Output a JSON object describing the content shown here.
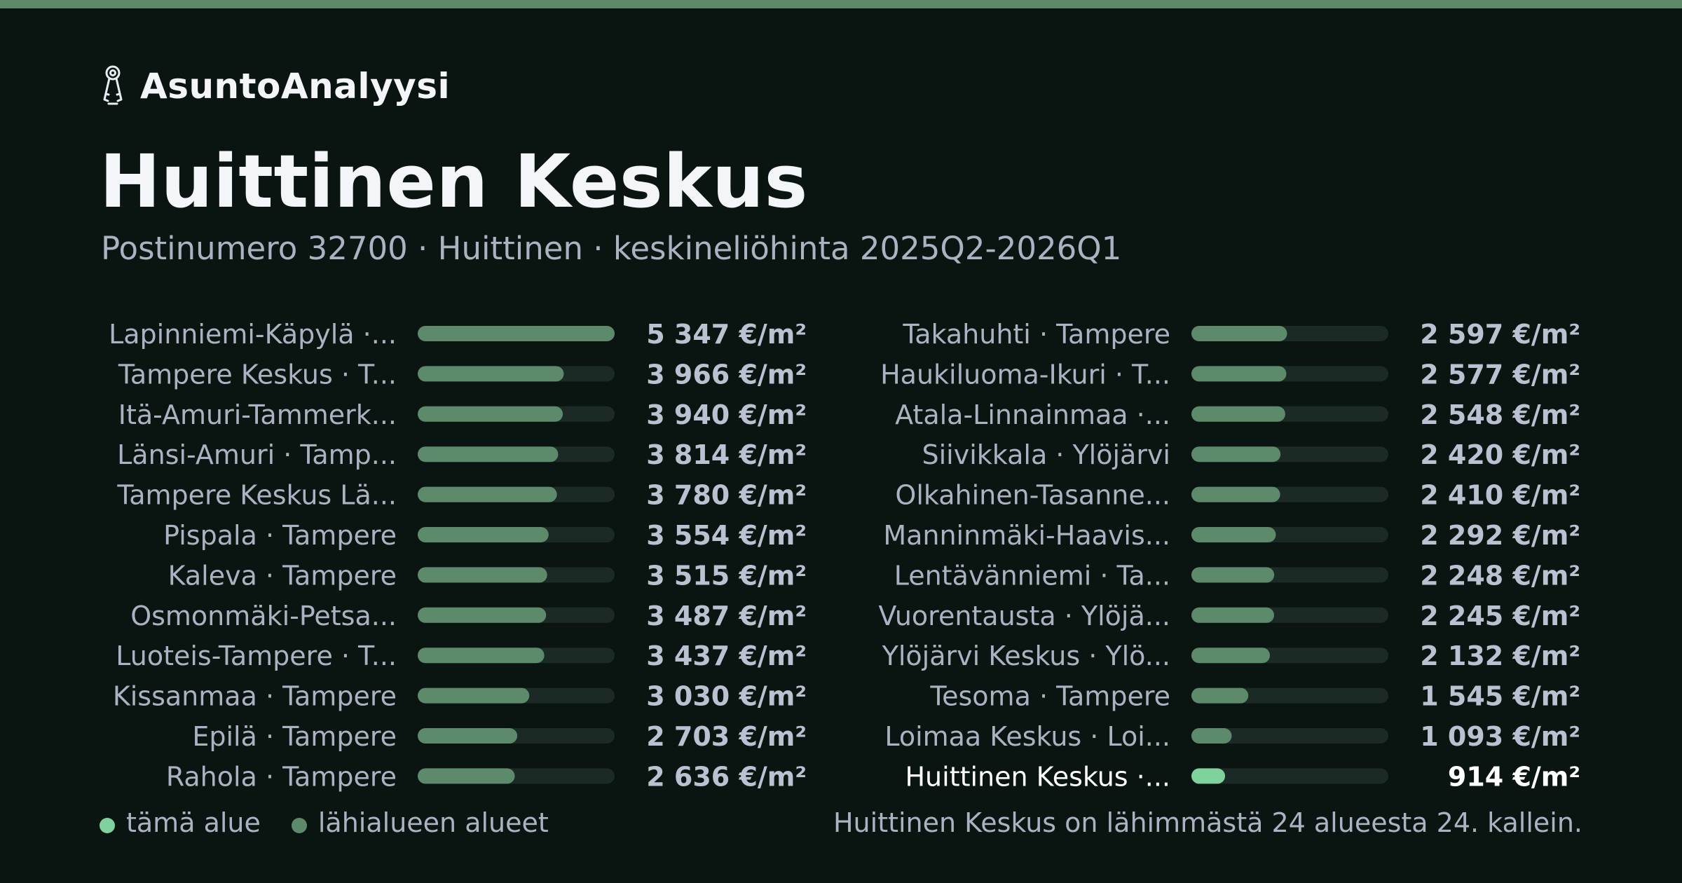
{
  "brand": {
    "name": "AsuntoAnalyysi",
    "icon": "keys-icon"
  },
  "title": "Huittinen Keskus",
  "subtitle": "Postinumero 32700 · Huittinen · keskineliöhinta 2025Q2-2026Q1",
  "colors": {
    "background": "#0a1512",
    "top_strip": "#5b8a66",
    "bar": "#5e8a6c",
    "bar_highlight": "#7fd29b",
    "track": "#1b2a25",
    "label": "#aab3c2",
    "label_highlight": "#ffffff",
    "value": "#b9c2d0",
    "value_highlight": "#ffffff"
  },
  "chart_data": {
    "type": "bar",
    "orientation": "horizontal",
    "unit": "€/m²",
    "xlim": [
      0,
      5347
    ],
    "grid": false,
    "layout": "two-column",
    "categories": [
      "Lapinniemi-Käpylä ·...",
      "Tampere Keskus · T...",
      "Itä-Amuri-Tammerk...",
      "Länsi-Amuri · Tamp...",
      "Tampere Keskus Lä...",
      "Pispala · Tampere",
      "Kaleva · Tampere",
      "Osmonmäki-Petsa...",
      "Luoteis-Tampere · T...",
      "Kissanmaa · Tampere",
      "Epilä · Tampere",
      "Rahola · Tampere",
      "Takahuhti · Tampere",
      "Haukiluoma-Ikuri · T...",
      "Atala-Linnainmaa ·...",
      "Siivikkala · Ylöjärvi",
      "Olkahinen-Tasanne...",
      "Manninmäki-Haavis...",
      "Lentävänniemi · Ta...",
      "Vuorentausta · Ylöjä...",
      "Ylöjärvi Keskus · Ylö...",
      "Tesoma · Tampere",
      "Loimaa Keskus · Loi...",
      "Huittinen Keskus ·..."
    ],
    "values": [
      5347,
      3966,
      3940,
      3814,
      3780,
      3554,
      3515,
      3487,
      3437,
      3030,
      2703,
      2636,
      2597,
      2577,
      2548,
      2420,
      2410,
      2292,
      2248,
      2245,
      2132,
      1545,
      1093,
      914
    ],
    "value_labels": [
      "5 347 €/m²",
      "3 966 €/m²",
      "3 940 €/m²",
      "3 814 €/m²",
      "3 780 €/m²",
      "3 554 €/m²",
      "3 515 €/m²",
      "3 487 €/m²",
      "3 437 €/m²",
      "3 030 €/m²",
      "2 703 €/m²",
      "2 636 €/m²",
      "2 597 €/m²",
      "2 577 €/m²",
      "2 548 €/m²",
      "2 420 €/m²",
      "2 410 €/m²",
      "2 292 €/m²",
      "2 248 €/m²",
      "2 245 €/m²",
      "2 132 €/m²",
      "1 545 €/m²",
      "1 093 €/m²",
      "914 €/m²"
    ],
    "highlight_index": 23,
    "legend": [
      {
        "label": "tämä alue",
        "color": "#7fd29b"
      },
      {
        "label": "lähialueen alueet",
        "color": "#5e8a6c"
      }
    ],
    "legend_position": "bottom-left"
  },
  "footnote": "Huittinen Keskus on lähimmästä 24 alueesta 24. kallein."
}
